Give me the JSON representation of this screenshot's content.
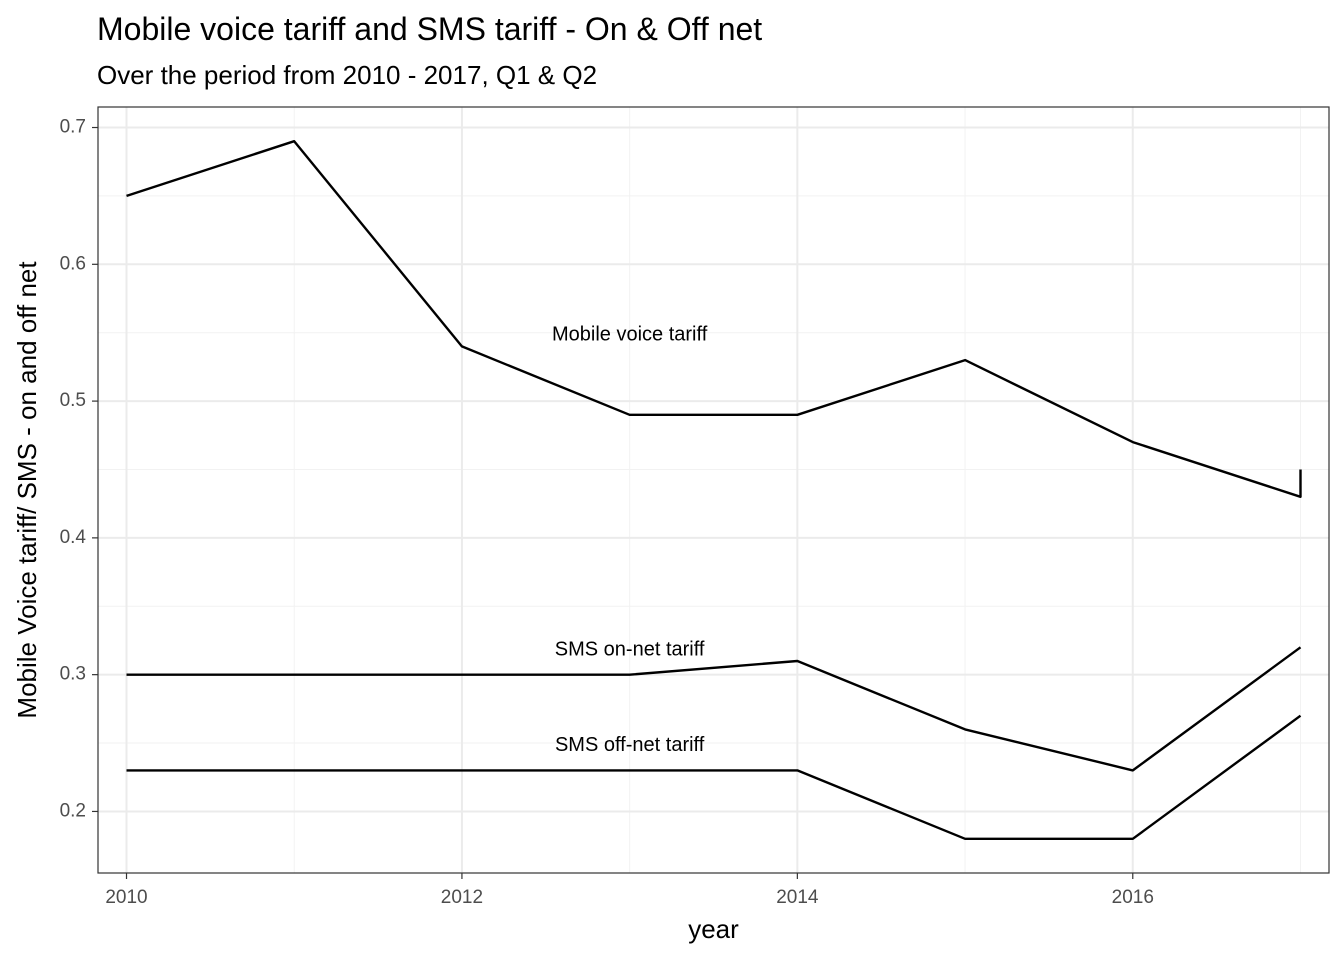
{
  "chart_data": {
    "type": "line",
    "title": "Mobile voice tariff and SMS tariff - On & Off net",
    "subtitle": "Over the period from 2010 - 2017, Q1 & Q2",
    "xlabel": "year",
    "ylabel": "Mobile Voice tariff/ SMS - on and off net",
    "xlim": [
      2009.83,
      2017.17
    ],
    "ylim": [
      0.155,
      0.715
    ],
    "x_ticks": [
      2010,
      2012,
      2014,
      2016
    ],
    "x_tick_labels": [
      "2010",
      "2012",
      "2014",
      "2016"
    ],
    "y_ticks": [
      0.2,
      0.3,
      0.4,
      0.5,
      0.6,
      0.7
    ],
    "y_tick_labels": [
      "0.2",
      "0.3",
      "0.4",
      "0.5",
      "0.6",
      "0.7"
    ],
    "grid": true,
    "legend": "none",
    "line_color": "#000000",
    "series": [
      {
        "key": "voice",
        "x": [
          2010,
          2011,
          2012,
          2013,
          2014,
          2015,
          2016,
          2017,
          2017
        ],
        "values": [
          0.65,
          0.69,
          0.54,
          0.49,
          0.49,
          0.53,
          0.47,
          0.43,
          0.45
        ]
      },
      {
        "key": "sms-on",
        "x": [
          2010,
          2011,
          2012,
          2013,
          2014,
          2015,
          2016,
          2017
        ],
        "values": [
          0.3,
          0.3,
          0.3,
          0.3,
          0.31,
          0.26,
          0.23,
          0.32
        ]
      },
      {
        "key": "sms-off",
        "x": [
          2010,
          2011,
          2012,
          2013,
          2014,
          2015,
          2016,
          2017
        ],
        "values": [
          0.23,
          0.23,
          0.23,
          0.23,
          0.23,
          0.18,
          0.18,
          0.27
        ]
      }
    ],
    "annotations": [
      {
        "text": "Mobile voice tariff",
        "x": 2013,
        "y": 0.548
      },
      {
        "text": "SMS on-net tariff",
        "x": 2013,
        "y": 0.318
      },
      {
        "text": "SMS off-net tariff",
        "x": 2013,
        "y": 0.248
      }
    ]
  }
}
